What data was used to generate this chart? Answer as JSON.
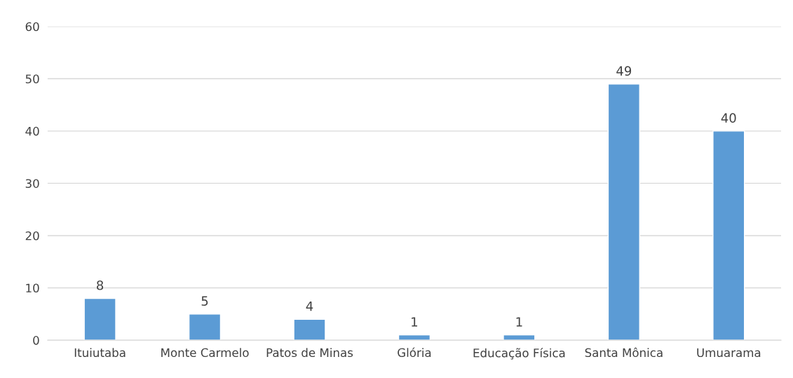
{
  "chart_data": {
    "type": "bar",
    "categories": [
      "Ituiutaba",
      "Monte Carmelo",
      "Patos de Minas",
      "Glória",
      "Educação Física",
      "Santa Mônica",
      "Umuarama"
    ],
    "values": [
      8,
      5,
      4,
      1,
      1,
      49,
      40
    ],
    "color": "#5b9bd5",
    "ylim": [
      0,
      60
    ],
    "yticks": [
      0,
      10,
      20,
      30,
      40,
      50,
      60
    ],
    "grid": "y",
    "data_labels": true
  }
}
